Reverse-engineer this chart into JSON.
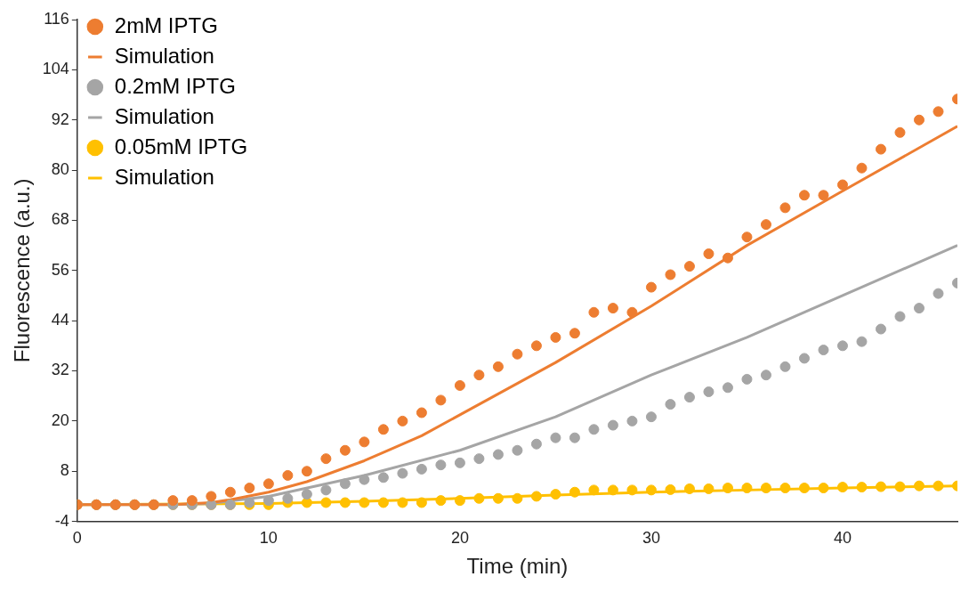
{
  "chart_data": {
    "type": "scatter",
    "xlabel": "Time (min)",
    "ylabel": "Fluorescence (a.u.)",
    "xlim": [
      0,
      46
    ],
    "xticks": [
      0,
      10,
      20,
      30,
      40
    ],
    "ylim": [
      -4,
      116
    ],
    "yticks": [
      -4,
      8,
      20,
      32,
      44,
      56,
      68,
      80,
      92,
      104,
      116
    ],
    "grid": false,
    "legend": "top left",
    "series": [
      {
        "name": "2mM IPTG",
        "marker": "circle",
        "color": "#ed7d31",
        "x": [
          0,
          1,
          2,
          3,
          4,
          5,
          6,
          7,
          8,
          9,
          10,
          11,
          12,
          13,
          14,
          15,
          16,
          17,
          18,
          19,
          20,
          21,
          22,
          23,
          24,
          25,
          26,
          27,
          28,
          29,
          30,
          31,
          32,
          33,
          34,
          35,
          36,
          37,
          38,
          39,
          40,
          41,
          42,
          43,
          44,
          45,
          46
        ],
        "values": [
          0,
          0,
          0,
          0,
          0,
          1,
          1,
          2,
          3,
          4,
          5,
          7,
          8,
          11,
          13,
          15,
          18,
          20,
          22,
          25,
          28.5,
          31,
          33,
          36,
          38,
          40,
          41,
          46,
          47,
          46,
          52,
          55,
          57,
          60,
          59,
          64,
          67,
          71,
          74,
          74,
          76.5,
          80.5,
          85,
          89,
          92,
          94,
          97
        ]
      },
      {
        "name": "Simulation",
        "type": "line",
        "marker": "none",
        "color": "#ed7d31",
        "x": [
          0,
          5,
          7,
          8,
          10,
          12,
          15,
          18,
          20,
          25,
          30,
          35,
          40,
          46
        ],
        "values": [
          0,
          0,
          0.5,
          1.2,
          3,
          5.5,
          10.5,
          16.5,
          21.5,
          34,
          47.5,
          62,
          75,
          90.5
        ]
      },
      {
        "name": "0.2mM IPTG",
        "marker": "circle",
        "color": "#a5a5a5",
        "x": [
          0,
          1,
          2,
          3,
          4,
          5,
          6,
          7,
          8,
          9,
          10,
          11,
          12,
          13,
          14,
          15,
          16,
          17,
          18,
          19,
          20,
          21,
          22,
          23,
          24,
          25,
          26,
          27,
          28,
          29,
          30,
          31,
          32,
          33,
          34,
          35,
          36,
          37,
          38,
          39,
          40,
          41,
          42,
          43,
          44,
          45,
          46
        ],
        "values": [
          0,
          0,
          0,
          0,
          0,
          0,
          0,
          0,
          0,
          0.5,
          1,
          1.5,
          2.5,
          3.5,
          5,
          6,
          6.5,
          7.5,
          8.5,
          9.5,
          10,
          11,
          12,
          13,
          14.5,
          16,
          16,
          18,
          19,
          20,
          21,
          24,
          25.7,
          27,
          28,
          30,
          31,
          33,
          35,
          37,
          38,
          39,
          42,
          45,
          47,
          50.5,
          53
        ]
      },
      {
        "name": "Simulation",
        "type": "line",
        "marker": "none",
        "color": "#a5a5a5",
        "x": [
          0,
          5,
          7,
          10,
          15,
          20,
          25,
          30,
          35,
          40,
          46
        ],
        "values": [
          0,
          0,
          0.3,
          2,
          7,
          13,
          21,
          31,
          40,
          50,
          62
        ]
      },
      {
        "name": "0.05mM IPTG",
        "marker": "circle",
        "color": "#ffc000",
        "x": [
          0,
          1,
          2,
          3,
          4,
          5,
          6,
          7,
          8,
          9,
          10,
          11,
          12,
          13,
          14,
          15,
          16,
          17,
          18,
          19,
          20,
          21,
          22,
          23,
          24,
          25,
          26,
          27,
          28,
          29,
          30,
          31,
          32,
          33,
          34,
          35,
          36,
          37,
          38,
          39,
          40,
          41,
          42,
          43,
          44,
          45,
          46
        ],
        "values": [
          0,
          0,
          0,
          0,
          0,
          0,
          0,
          0,
          0,
          0,
          0,
          0.5,
          0.5,
          0.5,
          0.5,
          0.5,
          0.5,
          0.5,
          0.5,
          1,
          1,
          1.5,
          1.5,
          1.5,
          2,
          2.5,
          3,
          3.5,
          3.5,
          3.5,
          3.5,
          3.6,
          3.8,
          3.8,
          4,
          4,
          4,
          4,
          4,
          4,
          4.2,
          4.2,
          4.3,
          4.3,
          4.5,
          4.5,
          4.5
        ]
      },
      {
        "name": "Simulation",
        "type": "line",
        "marker": "none",
        "color": "#ffc000",
        "x": [
          0,
          10,
          15,
          20,
          25,
          30,
          35,
          40,
          46
        ],
        "values": [
          0,
          0.3,
          0.8,
          1.5,
          2.3,
          3,
          3.5,
          4,
          4.5
        ]
      }
    ]
  }
}
